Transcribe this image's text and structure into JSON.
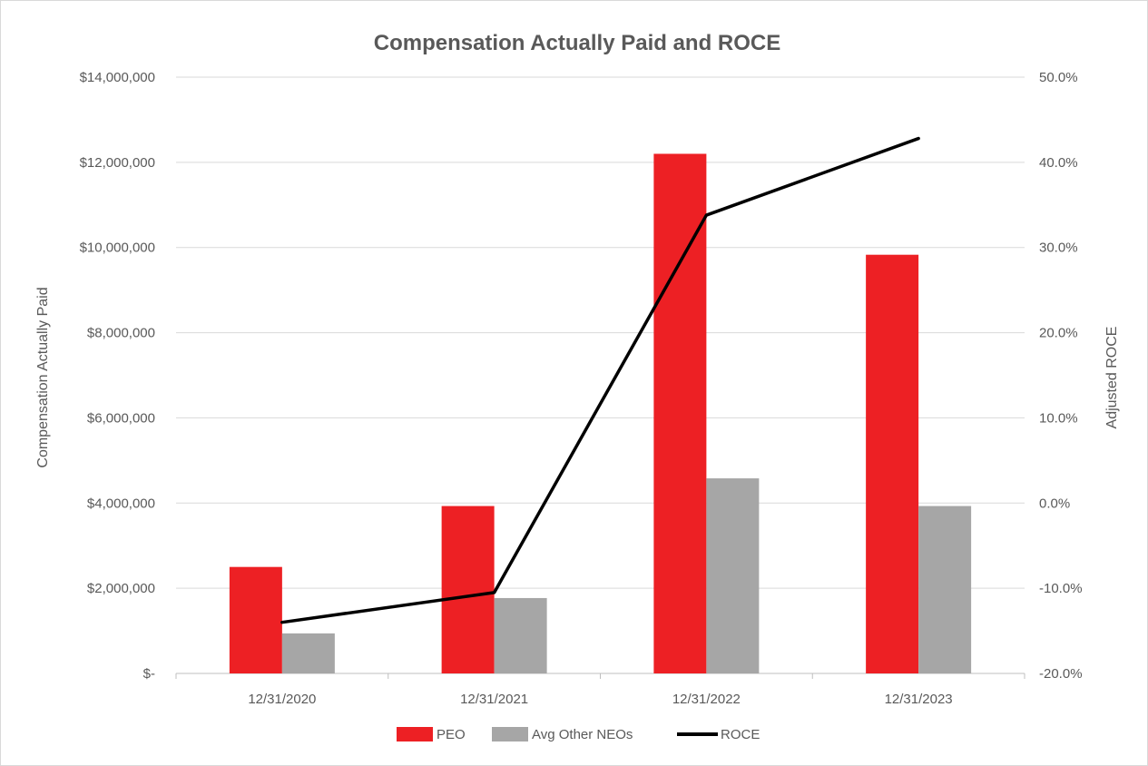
{
  "chart_data": {
    "type": "bar",
    "title": "Compensation Actually Paid and ROCE",
    "categories": [
      "12/31/2020",
      "12/31/2021",
      "12/31/2022",
      "12/31/2023"
    ],
    "series": [
      {
        "name": "PEO",
        "type": "bar",
        "axis": "left",
        "color": "#ed2024",
        "values": [
          2500000,
          3930000,
          12200000,
          9830000
        ]
      },
      {
        "name": "Avg Other NEOs",
        "type": "bar",
        "axis": "left",
        "color": "#a6a6a6",
        "values": [
          940000,
          1770000,
          4580000,
          3930000
        ]
      },
      {
        "name": "ROCE",
        "type": "line",
        "axis": "right",
        "color": "#000000",
        "values": [
          -14.0,
          -10.5,
          33.8,
          42.8
        ]
      }
    ],
    "ylabel": "Compensation Actually Paid",
    "ylabel_right": "Adjusted ROCE",
    "ylim": [
      0,
      14000000
    ],
    "ylim_right": [
      -20,
      50
    ],
    "yticks": [
      "$-",
      "$2,000,000",
      "$4,000,000",
      "$6,000,000",
      "$8,000,000",
      "$10,000,000",
      "$12,000,000",
      "$14,000,000"
    ],
    "yticks_right": [
      "-20.0%",
      "-10.0%",
      "0.0%",
      "10.0%",
      "20.0%",
      "30.0%",
      "40.0%",
      "50.0%"
    ],
    "grid": true,
    "legend_position": "bottom"
  }
}
